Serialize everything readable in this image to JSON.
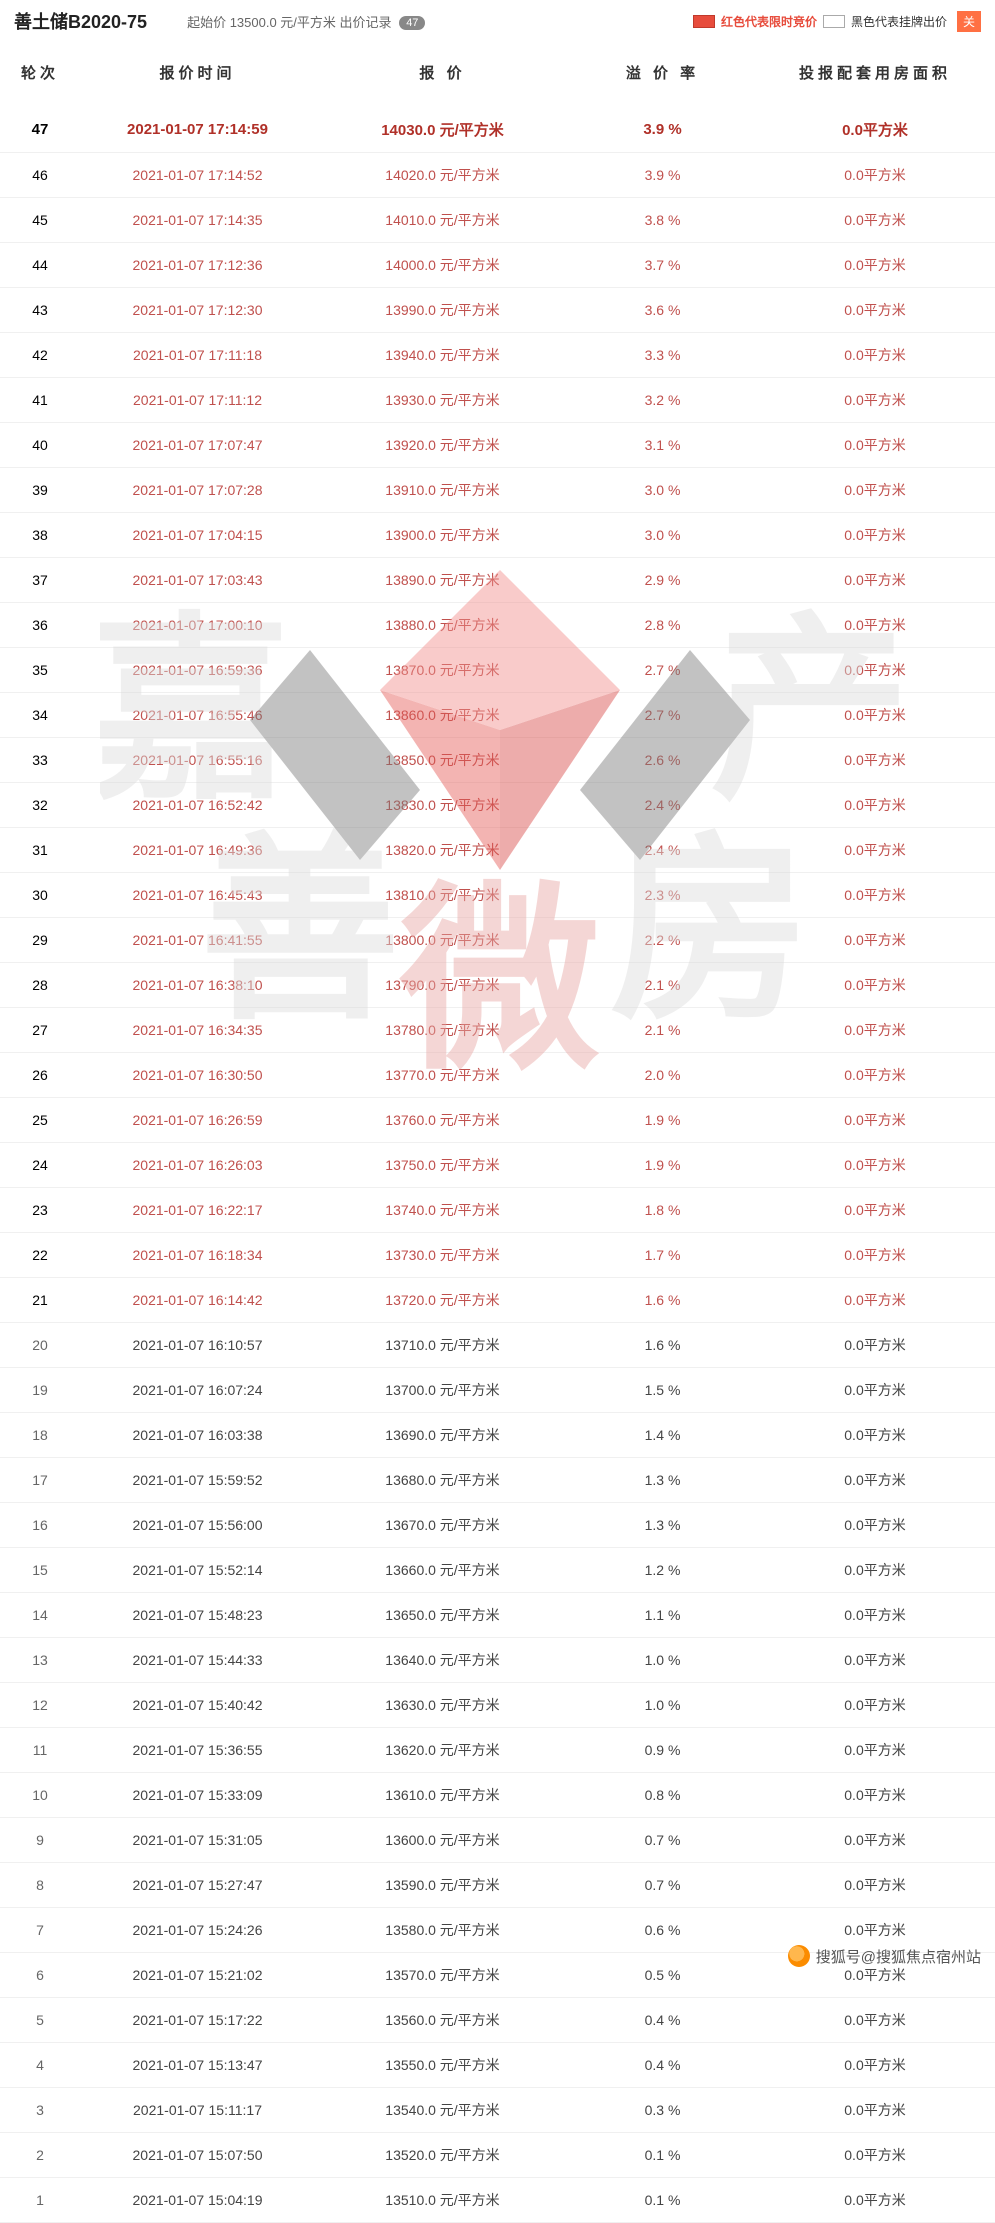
{
  "header": {
    "title": "善土储B2020-75",
    "start_price_label": "起始价",
    "start_price": "13500.0 元/平方米",
    "record_label": "出价记录",
    "record_count": "47",
    "legend_red_swatch_label": "T",
    "legend_red_text": "红色代表限时竞价",
    "legend_white_swatch_label": "T",
    "legend_white_text": "黑色代表挂牌出价",
    "close": "关"
  },
  "columns": [
    "轮次",
    "报价时间",
    "报    价",
    "溢 价 率",
    "投报配套用房面积"
  ],
  "price_unit": "元/平方米",
  "area_unit": "平方米",
  "rows": [
    {
      "round": "47",
      "time": "2021-01-07 17:14:59",
      "price": "14030.0",
      "rate": "3.9 %",
      "area": "0.0",
      "hl": true,
      "red": true
    },
    {
      "round": "46",
      "time": "2021-01-07 17:14:52",
      "price": "14020.0",
      "rate": "3.9 %",
      "area": "0.0",
      "red": true
    },
    {
      "round": "45",
      "time": "2021-01-07 17:14:35",
      "price": "14010.0",
      "rate": "3.8 %",
      "area": "0.0",
      "red": true
    },
    {
      "round": "44",
      "time": "2021-01-07 17:12:36",
      "price": "14000.0",
      "rate": "3.7 %",
      "area": "0.0",
      "red": true
    },
    {
      "round": "43",
      "time": "2021-01-07 17:12:30",
      "price": "13990.0",
      "rate": "3.6 %",
      "area": "0.0",
      "red": true
    },
    {
      "round": "42",
      "time": "2021-01-07 17:11:18",
      "price": "13940.0",
      "rate": "3.3 %",
      "area": "0.0",
      "red": true
    },
    {
      "round": "41",
      "time": "2021-01-07 17:11:12",
      "price": "13930.0",
      "rate": "3.2 %",
      "area": "0.0",
      "red": true
    },
    {
      "round": "40",
      "time": "2021-01-07 17:07:47",
      "price": "13920.0",
      "rate": "3.1 %",
      "area": "0.0",
      "red": true
    },
    {
      "round": "39",
      "time": "2021-01-07 17:07:28",
      "price": "13910.0",
      "rate": "3.0 %",
      "area": "0.0",
      "red": true
    },
    {
      "round": "38",
      "time": "2021-01-07 17:04:15",
      "price": "13900.0",
      "rate": "3.0 %",
      "area": "0.0",
      "red": true
    },
    {
      "round": "37",
      "time": "2021-01-07 17:03:43",
      "price": "13890.0",
      "rate": "2.9 %",
      "area": "0.0",
      "red": true
    },
    {
      "round": "36",
      "time": "2021-01-07 17:00:10",
      "price": "13880.0",
      "rate": "2.8 %",
      "area": "0.0",
      "red": true
    },
    {
      "round": "35",
      "time": "2021-01-07 16:59:36",
      "price": "13870.0",
      "rate": "2.7 %",
      "area": "0.0",
      "red": true
    },
    {
      "round": "34",
      "time": "2021-01-07 16:55:46",
      "price": "13860.0",
      "rate": "2.7 %",
      "area": "0.0",
      "red": true
    },
    {
      "round": "33",
      "time": "2021-01-07 16:55:16",
      "price": "13850.0",
      "rate": "2.6 %",
      "area": "0.0",
      "red": true
    },
    {
      "round": "32",
      "time": "2021-01-07 16:52:42",
      "price": "13830.0",
      "rate": "2.4 %",
      "area": "0.0",
      "red": true
    },
    {
      "round": "31",
      "time": "2021-01-07 16:49:36",
      "price": "13820.0",
      "rate": "2.4 %",
      "area": "0.0",
      "red": true
    },
    {
      "round": "30",
      "time": "2021-01-07 16:45:43",
      "price": "13810.0",
      "rate": "2.3 %",
      "area": "0.0",
      "red": true
    },
    {
      "round": "29",
      "time": "2021-01-07 16:41:55",
      "price": "13800.0",
      "rate": "2.2 %",
      "area": "0.0",
      "red": true
    },
    {
      "round": "28",
      "time": "2021-01-07 16:38:10",
      "price": "13790.0",
      "rate": "2.1 %",
      "area": "0.0",
      "red": true
    },
    {
      "round": "27",
      "time": "2021-01-07 16:34:35",
      "price": "13780.0",
      "rate": "2.1 %",
      "area": "0.0",
      "red": true
    },
    {
      "round": "26",
      "time": "2021-01-07 16:30:50",
      "price": "13770.0",
      "rate": "2.0 %",
      "area": "0.0",
      "red": true
    },
    {
      "round": "25",
      "time": "2021-01-07 16:26:59",
      "price": "13760.0",
      "rate": "1.9 %",
      "area": "0.0",
      "red": true
    },
    {
      "round": "24",
      "time": "2021-01-07 16:26:03",
      "price": "13750.0",
      "rate": "1.9 %",
      "area": "0.0",
      "red": true
    },
    {
      "round": "23",
      "time": "2021-01-07 16:22:17",
      "price": "13740.0",
      "rate": "1.8 %",
      "area": "0.0",
      "red": true
    },
    {
      "round": "22",
      "time": "2021-01-07 16:18:34",
      "price": "13730.0",
      "rate": "1.7 %",
      "area": "0.0",
      "red": true
    },
    {
      "round": "21",
      "time": "2021-01-07 16:14:42",
      "price": "13720.0",
      "rate": "1.6 %",
      "area": "0.0",
      "red": true
    },
    {
      "round": "20",
      "time": "2021-01-07 16:10:57",
      "price": "13710.0",
      "rate": "1.6 %",
      "area": "0.0"
    },
    {
      "round": "19",
      "time": "2021-01-07 16:07:24",
      "price": "13700.0",
      "rate": "1.5 %",
      "area": "0.0"
    },
    {
      "round": "18",
      "time": "2021-01-07 16:03:38",
      "price": "13690.0",
      "rate": "1.4 %",
      "area": "0.0"
    },
    {
      "round": "17",
      "time": "2021-01-07 15:59:52",
      "price": "13680.0",
      "rate": "1.3 %",
      "area": "0.0"
    },
    {
      "round": "16",
      "time": "2021-01-07 15:56:00",
      "price": "13670.0",
      "rate": "1.3 %",
      "area": "0.0"
    },
    {
      "round": "15",
      "time": "2021-01-07 15:52:14",
      "price": "13660.0",
      "rate": "1.2 %",
      "area": "0.0"
    },
    {
      "round": "14",
      "time": "2021-01-07 15:48:23",
      "price": "13650.0",
      "rate": "1.1 %",
      "area": "0.0"
    },
    {
      "round": "13",
      "time": "2021-01-07 15:44:33",
      "price": "13640.0",
      "rate": "1.0 %",
      "area": "0.0"
    },
    {
      "round": "12",
      "time": "2021-01-07 15:40:42",
      "price": "13630.0",
      "rate": "1.0 %",
      "area": "0.0"
    },
    {
      "round": "11",
      "time": "2021-01-07 15:36:55",
      "price": "13620.0",
      "rate": "0.9 %",
      "area": "0.0"
    },
    {
      "round": "10",
      "time": "2021-01-07 15:33:09",
      "price": "13610.0",
      "rate": "0.8 %",
      "area": "0.0"
    },
    {
      "round": "9",
      "time": "2021-01-07 15:31:05",
      "price": "13600.0",
      "rate": "0.7 %",
      "area": "0.0"
    },
    {
      "round": "8",
      "time": "2021-01-07 15:27:47",
      "price": "13590.0",
      "rate": "0.7 %",
      "area": "0.0"
    },
    {
      "round": "7",
      "time": "2021-01-07 15:24:26",
      "price": "13580.0",
      "rate": "0.6 %",
      "area": "0.0"
    },
    {
      "round": "6",
      "time": "2021-01-07 15:21:02",
      "price": "13570.0",
      "rate": "0.5 %",
      "area": "0.0"
    },
    {
      "round": "5",
      "time": "2021-01-07 15:17:22",
      "price": "13560.0",
      "rate": "0.4 %",
      "area": "0.0"
    },
    {
      "round": "4",
      "time": "2021-01-07 15:13:47",
      "price": "13550.0",
      "rate": "0.4 %",
      "area": "0.0"
    },
    {
      "round": "3",
      "time": "2021-01-07 15:11:17",
      "price": "13540.0",
      "rate": "0.3 %",
      "area": "0.0"
    },
    {
      "round": "2",
      "time": "2021-01-07 15:07:50",
      "price": "13520.0",
      "rate": "0.1 %",
      "area": "0.0"
    },
    {
      "round": "1",
      "time": "2021-01-07 15:04:19",
      "price": "13510.0",
      "rate": "0.1 %",
      "area": "0.0"
    }
  ],
  "watermark": {
    "chars": [
      "嘉",
      "善",
      "微",
      "房",
      "产"
    ],
    "char_color": "#dcdcdc",
    "diamond_top": "#f28e8c",
    "diamond_bottom": "#e55b57",
    "arrow_color": "#7a7a7a"
  },
  "footer": {
    "text": "搜狐号@搜狐焦点宿州站"
  }
}
